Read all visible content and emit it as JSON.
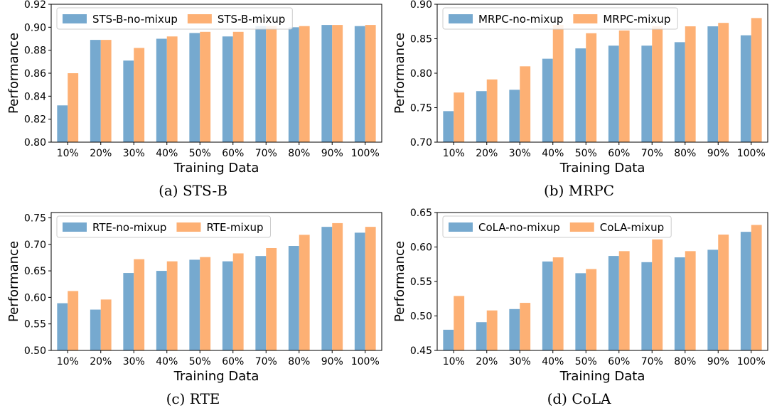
{
  "figure": {
    "captions": [
      "(a)  STS-B",
      "(b)  MRPC",
      "(c)  RTE",
      "(d)  CoLA"
    ]
  },
  "colors": {
    "no_mixup": "#76a9cf",
    "mixup": "#fdb074"
  },
  "chart_data": [
    {
      "type": "bar",
      "title": "",
      "caption": "(a)  STS-B",
      "xlabel": "Training Data",
      "ylabel": "Performance",
      "categories": [
        "10%",
        "20%",
        "30%",
        "40%",
        "50%",
        "60%",
        "70%",
        "80%",
        "90%",
        "100%"
      ],
      "ylim": [
        0.8,
        0.92
      ],
      "yticks": [
        "0.80",
        "0.82",
        "0.84",
        "0.86",
        "0.88",
        "0.90",
        "0.92"
      ],
      "legend_position": "top-left",
      "series": [
        {
          "name": "STS-B-no-mixup",
          "color": "#76a9cf",
          "values": [
            0.832,
            0.889,
            0.871,
            0.89,
            0.895,
            0.892,
            0.901,
            0.9,
            0.902,
            0.901
          ]
        },
        {
          "name": "STS-B-mixup",
          "color": "#fdb074",
          "values": [
            0.86,
            0.889,
            0.882,
            0.892,
            0.896,
            0.896,
            0.901,
            0.901,
            0.902,
            0.902
          ]
        }
      ]
    },
    {
      "type": "bar",
      "title": "",
      "caption": "(b)  MRPC",
      "xlabel": "Training Data",
      "ylabel": "Performance",
      "categories": [
        "10%",
        "20%",
        "30%",
        "40%",
        "50%",
        "60%",
        "70%",
        "80%",
        "90%",
        "100%"
      ],
      "ylim": [
        0.7,
        0.9
      ],
      "yticks": [
        "0.70",
        "0.75",
        "0.80",
        "0.85",
        "0.90"
      ],
      "legend_position": "top-left",
      "series": [
        {
          "name": "MRPC-no-mixup",
          "color": "#76a9cf",
          "values": [
            0.745,
            0.774,
            0.776,
            0.821,
            0.836,
            0.84,
            0.84,
            0.845,
            0.868,
            0.855
          ]
        },
        {
          "name": "MRPC-mixup",
          "color": "#fdb074",
          "values": [
            0.772,
            0.791,
            0.81,
            0.87,
            0.858,
            0.862,
            0.868,
            0.868,
            0.873,
            0.88
          ]
        }
      ]
    },
    {
      "type": "bar",
      "title": "",
      "caption": "(c)  RTE",
      "xlabel": "Training Data",
      "ylabel": "Performance",
      "categories": [
        "10%",
        "20%",
        "30%",
        "40%",
        "50%",
        "60%",
        "70%",
        "80%",
        "90%",
        "100%"
      ],
      "ylim": [
        0.5,
        0.76
      ],
      "yticks": [
        "0.50",
        "0.55",
        "0.60",
        "0.65",
        "0.70",
        "0.75"
      ],
      "legend_position": "top-left",
      "series": [
        {
          "name": "RTE-no-mixup",
          "color": "#76a9cf",
          "values": [
            0.589,
            0.577,
            0.646,
            0.65,
            0.671,
            0.668,
            0.678,
            0.697,
            0.733,
            0.722
          ]
        },
        {
          "name": "RTE-mixup",
          "color": "#fdb074",
          "values": [
            0.612,
            0.596,
            0.672,
            0.668,
            0.676,
            0.683,
            0.693,
            0.718,
            0.74,
            0.733
          ]
        }
      ]
    },
    {
      "type": "bar",
      "title": "",
      "caption": "(d)  CoLA",
      "xlabel": "Training Data",
      "ylabel": "Performance",
      "categories": [
        "10%",
        "20%",
        "30%",
        "40%",
        "50%",
        "60%",
        "70%",
        "80%",
        "90%",
        "100%"
      ],
      "ylim": [
        0.45,
        0.65
      ],
      "yticks": [
        "0.45",
        "0.50",
        "0.55",
        "0.60",
        "0.65"
      ],
      "legend_position": "top-left",
      "series": [
        {
          "name": "CoLA-no-mixup",
          "color": "#76a9cf",
          "values": [
            0.48,
            0.491,
            0.51,
            0.579,
            0.562,
            0.587,
            0.578,
            0.585,
            0.596,
            0.622
          ]
        },
        {
          "name": "CoLA-mixup",
          "color": "#fdb074",
          "values": [
            0.529,
            0.508,
            0.519,
            0.585,
            0.568,
            0.594,
            0.611,
            0.594,
            0.618,
            0.632
          ]
        }
      ]
    }
  ]
}
